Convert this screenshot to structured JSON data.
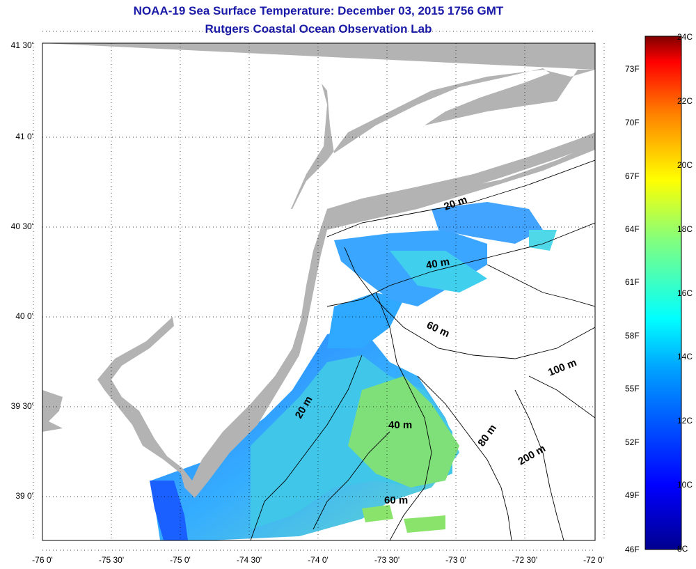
{
  "title": "NOAA-19 Sea Surface Temperature:  December 03, 2015 1756 GMT",
  "subtitle": "Rutgers Coastal Ocean Observation Lab",
  "lat_ticks": [
    "41 30'",
    "41 0'",
    "40 30'",
    "40 0'",
    "39 30'",
    "39 0'"
  ],
  "lon_ticks": [
    "-76 0'",
    "-75 30'",
    "-75 0'",
    "-74 30'",
    "-74 0'",
    "-73 30'",
    "-73 0'",
    "-72 30'",
    "-72 0'"
  ],
  "depth_labels": [
    "20 m",
    "40 m",
    "60 m",
    "20 m",
    "40 m",
    "60 m",
    "80 m",
    "100 m",
    "200 m"
  ],
  "colorbar": {
    "fahrenheit": [
      "73F",
      "70F",
      "67F",
      "64F",
      "61F",
      "58F",
      "55F",
      "52F",
      "49F",
      "46F"
    ],
    "celsius": [
      "24C",
      "22C",
      "20C",
      "18C",
      "16C",
      "14C",
      "12C",
      "10C",
      "8C"
    ]
  },
  "colors": {
    "land": "#b3b3b3",
    "title": "#1a1aa8",
    "cloud": "#ffffff"
  }
}
